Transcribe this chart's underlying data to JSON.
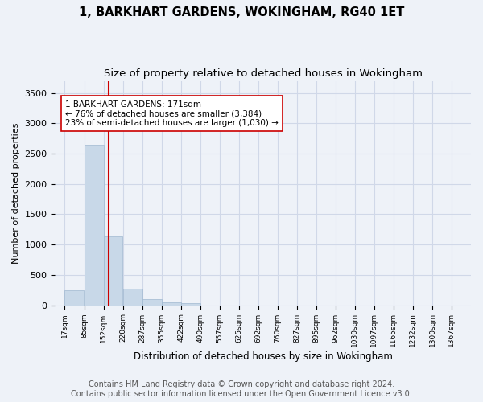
{
  "title_line1": "1, BARKHART GARDENS, WOKINGHAM, RG40 1ET",
  "title_line2": "Size of property relative to detached houses in Wokingham",
  "xlabel": "Distribution of detached houses by size in Wokingham",
  "ylabel": "Number of detached properties",
  "bar_color": "#c8d8e8",
  "bar_edge_color": "#a0b8d0",
  "annotation_line1": "1 BARKHART GARDENS: 171sqm",
  "annotation_line2": "← 76% of detached houses are smaller (3,384)",
  "annotation_line3": "23% of semi-detached houses are larger (1,030) →",
  "property_size": 171,
  "footer_line1": "Contains HM Land Registry data © Crown copyright and database right 2024.",
  "footer_line2": "Contains public sector information licensed under the Open Government Licence v3.0.",
  "categories": [
    "17sqm",
    "85sqm",
    "152sqm",
    "220sqm",
    "287sqm",
    "355sqm",
    "422sqm",
    "490sqm",
    "557sqm",
    "625sqm",
    "692sqm",
    "760sqm",
    "827sqm",
    "895sqm",
    "962sqm",
    "1030sqm",
    "1097sqm",
    "1165sqm",
    "1232sqm",
    "1300sqm",
    "1367sqm"
  ],
  "bin_edges": [
    17,
    85,
    152,
    220,
    287,
    355,
    422,
    490,
    557,
    625,
    692,
    760,
    827,
    895,
    962,
    1030,
    1097,
    1165,
    1232,
    1300,
    1367
  ],
  "values": [
    250,
    2650,
    1130,
    270,
    100,
    50,
    30,
    0,
    0,
    0,
    0,
    0,
    0,
    0,
    0,
    0,
    0,
    0,
    0,
    0,
    0
  ],
  "ylim": [
    0,
    3700
  ],
  "yticks": [
    0,
    500,
    1000,
    1500,
    2000,
    2500,
    3000,
    3500
  ],
  "grid_color": "#d0d8e8",
  "background_color": "#eef2f8",
  "vline_x": 171,
  "vline_color": "#cc0000",
  "box_color": "#ffffff",
  "box_edge_color": "#cc0000",
  "title_fontsize": 10.5,
  "subtitle_fontsize": 9.5,
  "annotation_fontsize": 7.5,
  "footer_fontsize": 7.0,
  "ylabel_fontsize": 8,
  "xlabel_fontsize": 8.5,
  "ytick_fontsize": 8,
  "xtick_fontsize": 6.5
}
